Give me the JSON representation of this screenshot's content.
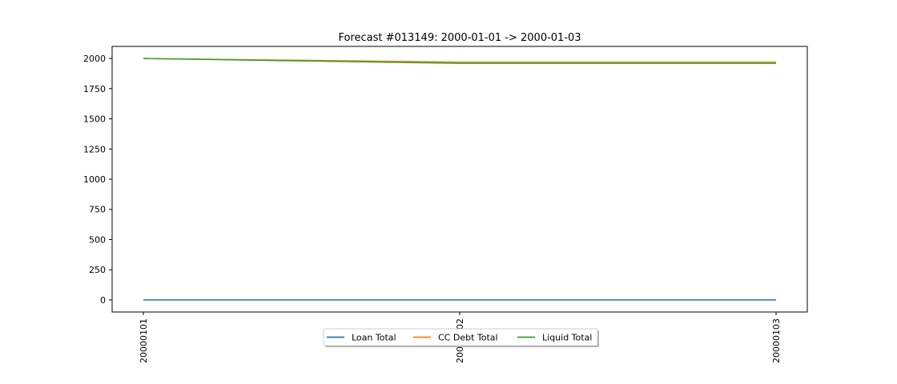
{
  "chart_data": {
    "type": "line",
    "title": "Forecast #013149: 2000-01-01 -> 2000-01-03",
    "xlabel": "",
    "ylabel": "",
    "categories": [
      "20000101",
      "20000102",
      "20000103"
    ],
    "ylim": [
      -100,
      2100
    ],
    "yticks": [
      0,
      250,
      500,
      750,
      1000,
      1250,
      1500,
      1750,
      2000
    ],
    "grid": false,
    "legend_position": "bottom-center",
    "series": [
      {
        "name": "Loan Total",
        "color": "#1f77b4",
        "values": [
          0,
          0,
          0
        ]
      },
      {
        "name": "CC Debt Total",
        "color": "#ff7f0e",
        "values": [
          2000,
          1970,
          1970
        ]
      },
      {
        "name": "Liquid Total",
        "color": "#2ca02c",
        "values": [
          2000,
          1960,
          1960
        ]
      }
    ]
  }
}
